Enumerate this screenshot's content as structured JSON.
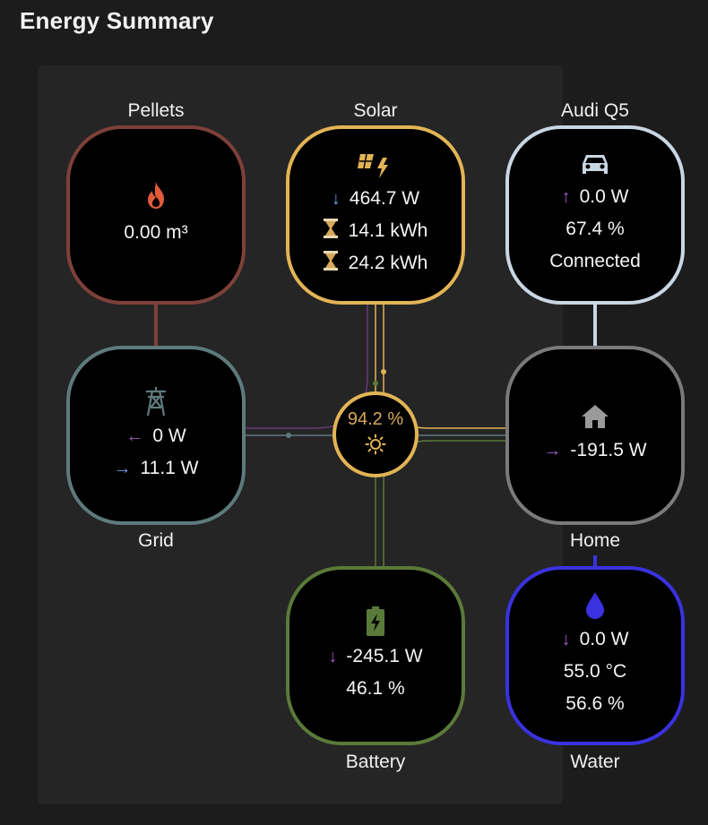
{
  "header": {
    "title": "Energy Summary"
  },
  "colors": {
    "pellets": "#7e4039",
    "solar": "#e2b455",
    "car": "#c9d6e3",
    "grid": "#5f7a7c",
    "home": "#7a7a7a",
    "battery": "#5a7a39",
    "water": "#3a32e0",
    "flow_purple": "#6a3a7c",
    "arrow_purple": "#9b59c4",
    "arrow_blue": "#6e94e0",
    "fire": "#e05a3a"
  },
  "pellets": {
    "label": "Pellets",
    "icon": "fire-icon",
    "value": "0.00 m³"
  },
  "solar": {
    "label": "Solar",
    "icon": "solar-panel-icon",
    "power": "464.7 W",
    "today": "14.1 kWh",
    "total": "24.2 kWh"
  },
  "car": {
    "label": "Audi Q5",
    "icon": "car-icon",
    "power": "0.0 W",
    "charge": "67.4 %",
    "status": "Connected"
  },
  "grid": {
    "label": "Grid",
    "icon": "transmission-tower-icon",
    "import": "0 W",
    "export": "11.1 W"
  },
  "center": {
    "value": "94.2 %",
    "icon": "sun-icon"
  },
  "home": {
    "label": "Home",
    "icon": "home-icon",
    "power": "-191.5 W"
  },
  "battery": {
    "label": "Battery",
    "icon": "battery-charging-icon",
    "power": "-245.1 W",
    "charge": "46.1 %"
  },
  "water": {
    "label": "Water",
    "icon": "water-drop-icon",
    "power": "0.0 W",
    "temperature": "55.0 °C",
    "level": "56.6 %"
  }
}
